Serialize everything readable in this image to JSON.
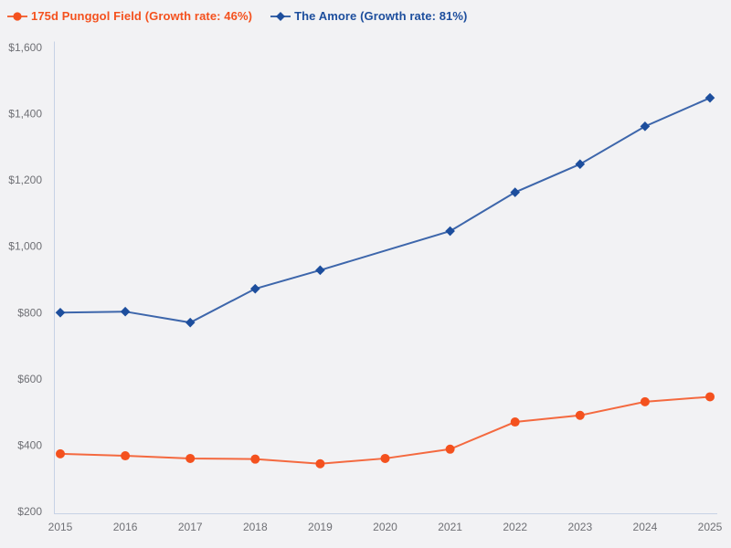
{
  "chart_data": {
    "type": "line",
    "categories": [
      "2015",
      "2016",
      "2017",
      "2018",
      "2019",
      "2020",
      "2021",
      "2022",
      "2023",
      "2024",
      "2025"
    ],
    "series": [
      {
        "name": "175d Punggol Field (Growth rate: 46%)",
        "color": "#f4511e",
        "marker": "circle",
        "values": [
          374,
          368,
          360,
          358,
          344,
          360,
          388,
          470,
          490,
          531,
          546
        ]
      },
      {
        "name": "The Amore (Growth rate: 81%)",
        "color": "#1d4e9d",
        "marker": "diamond",
        "values": [
          800,
          803,
          770,
          872,
          928,
          null,
          1046,
          1163,
          1248,
          1362,
          1448
        ]
      }
    ],
    "y_axis": {
      "min": 200,
      "max": 1600,
      "step": 200,
      "tick_labels": [
        "$200",
        "$400",
        "$600",
        "$800",
        "$1,000",
        "$1,200",
        "$1,400",
        "$1,600"
      ]
    },
    "legend_position": "top-left",
    "grid": false,
    "axis_line_color": "#c7d2e5",
    "tick_label_color": "#6f7075",
    "background_color": "#f2f2f4"
  }
}
